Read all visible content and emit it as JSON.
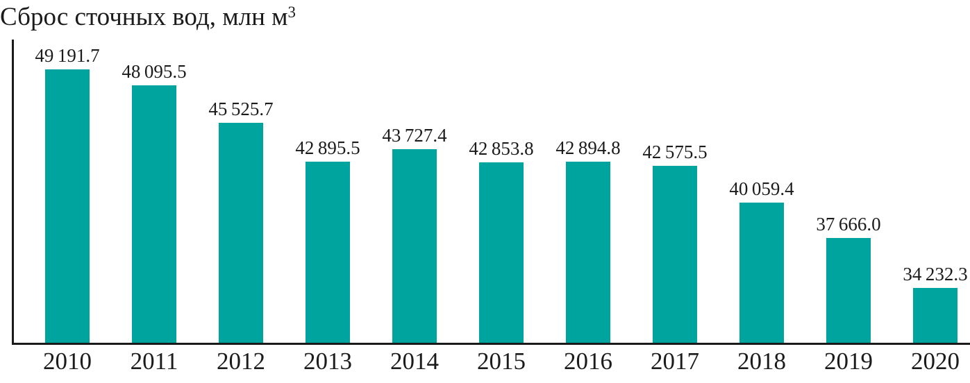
{
  "page": {
    "background": "#ffffff"
  },
  "chart_data": {
    "type": "bar",
    "title": "Сброс сточных вод, млн м³",
    "title_main": "Сброс сточных вод, млн м",
    "title_sup": "3",
    "categories": [
      "2010",
      "2011",
      "2012",
      "2013",
      "2014",
      "2015",
      "2016",
      "2017",
      "2018",
      "2019",
      "2020"
    ],
    "values": [
      49191.7,
      48095.5,
      45525.7,
      42895.5,
      43727.4,
      42853.8,
      42894.8,
      42575.5,
      40059.4,
      37666.0,
      34232.3
    ],
    "value_labels": [
      "49 191.7",
      "48 095.5",
      "45 525.7",
      "42 895.5",
      "43 727.4",
      "42 853.8",
      "42 894.8",
      "42 575.5",
      "40 059.4",
      "37 666.0",
      "34 232.3"
    ],
    "xlabel": "",
    "ylabel": "",
    "ylim": [
      30500,
      49500
    ],
    "grid": false,
    "legend": false,
    "bar_color": "#00a49e",
    "axis_color": "#1a1a1a",
    "text_color": "#1b1b1b",
    "background_color": "#ffffff"
  }
}
